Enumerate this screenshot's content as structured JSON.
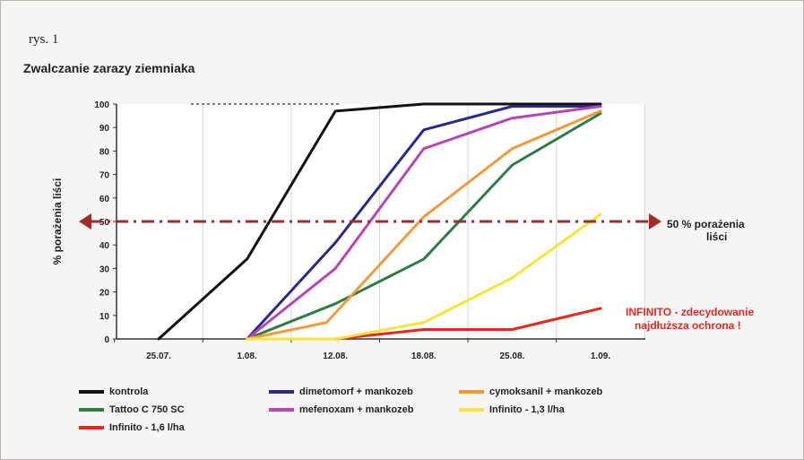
{
  "figure_label": "rys. 1",
  "chart_data": {
    "type": "line",
    "title": "Zwalczanie zarazy ziemniaka",
    "ylabel": "% porażenia liści",
    "xlabel": "",
    "ylim": [
      0,
      100
    ],
    "yticks": [
      "0",
      "10",
      "20",
      "30",
      "40",
      "50",
      "60",
      "70",
      "80",
      "90",
      "100"
    ],
    "categories": [
      "25.07.",
      "1.08.",
      "12.08.",
      "18.08.",
      "25.08.",
      "1.09."
    ],
    "x_positions": [
      0,
      1,
      2,
      3,
      4,
      5
    ],
    "grid": "vertical",
    "series": [
      {
        "name": "kontrola",
        "color": "#111111",
        "x": [
          0,
          1,
          2,
          3,
          4,
          5
        ],
        "values": [
          0,
          34,
          97,
          100,
          100,
          100
        ]
      },
      {
        "name": "Tattoo C 750 SC",
        "color": "#2e7d46",
        "x": [
          1,
          2,
          3,
          4,
          5
        ],
        "values": [
          0,
          15,
          34,
          74,
          96
        ]
      },
      {
        "name": "Infinito - 1,6 l/ha",
        "color": "#e8281e",
        "x": [
          1,
          2,
          3,
          4,
          5
        ],
        "values": [
          0,
          0,
          4,
          4,
          13
        ]
      },
      {
        "name": "dimetomorf + mankozeb",
        "color": "#2a2890",
        "x": [
          1,
          2,
          3,
          4,
          5
        ],
        "values": [
          0,
          41,
          89,
          99,
          99
        ]
      },
      {
        "name": "mefenoxam + mankozeb",
        "color": "#b845b5",
        "x": [
          1,
          2,
          3,
          4,
          5
        ],
        "values": [
          0,
          30,
          81,
          94,
          99
        ]
      },
      {
        "name": "cymoksanil + mankozeb",
        "color": "#f29a3a",
        "x": [
          1,
          1.9,
          3,
          4,
          5
        ],
        "values": [
          0,
          7,
          52,
          81,
          97
        ]
      },
      {
        "name": "Infinito - 1,3 l/ha",
        "color": "#f5e53a",
        "x": [
          1,
          2,
          3,
          4,
          5
        ],
        "values": [
          0,
          0,
          7,
          26,
          53
        ]
      }
    ],
    "threshold": {
      "value": 50,
      "color": "#a52a2a",
      "label_line1": "50 % porażenia",
      "label_line2": "liści"
    },
    "annotation": {
      "line1": "INFINITO - zdecydowanie",
      "line2": "najdłuższa ochrona !",
      "color": "#e8281e"
    }
  }
}
